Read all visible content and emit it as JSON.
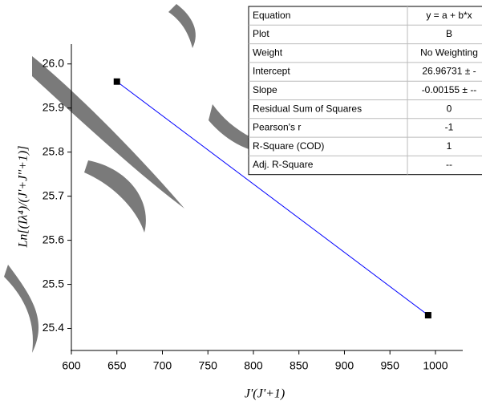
{
  "chart_data": {
    "type": "line",
    "x": [
      650,
      992
    ],
    "values": [
      25.96,
      25.43
    ],
    "color": "#0000ff",
    "marker_color": "#000000",
    "xlabel": "J'(J'+1)",
    "ylabel": "Ln[(Iλ⁴)/(J'+J''+1)]",
    "xlim": [
      600,
      1030
    ],
    "ylim": [
      25.35,
      26.045
    ],
    "xticks": [
      600,
      650,
      700,
      750,
      800,
      850,
      900,
      950,
      1000
    ],
    "yticks": [
      {
        "value": 25.4,
        "label": "25.4"
      },
      {
        "value": 25.5,
        "label": "25.5"
      },
      {
        "value": 25.6,
        "label": "25.6"
      },
      {
        "value": 25.7,
        "label": "25.7"
      },
      {
        "value": 25.8,
        "label": "25.8"
      },
      {
        "value": 25.9,
        "label": "25.9"
      },
      {
        "value": 26,
        "label": "26.0"
      }
    ]
  },
  "table": {
    "rows": [
      [
        "Equation",
        "y = a + b*x"
      ],
      [
        "Plot",
        "B"
      ],
      [
        "Weight",
        "No Weighting"
      ],
      [
        "Intercept",
        "26.96731 ± -"
      ],
      [
        "Slope",
        "-0.00155 ± --"
      ],
      [
        "Residual Sum of Squares",
        "0"
      ],
      [
        "Pearson's r",
        "-1"
      ],
      [
        "R-Square (COD)",
        "1"
      ],
      [
        "Adj. R-Square",
        "--"
      ]
    ]
  }
}
